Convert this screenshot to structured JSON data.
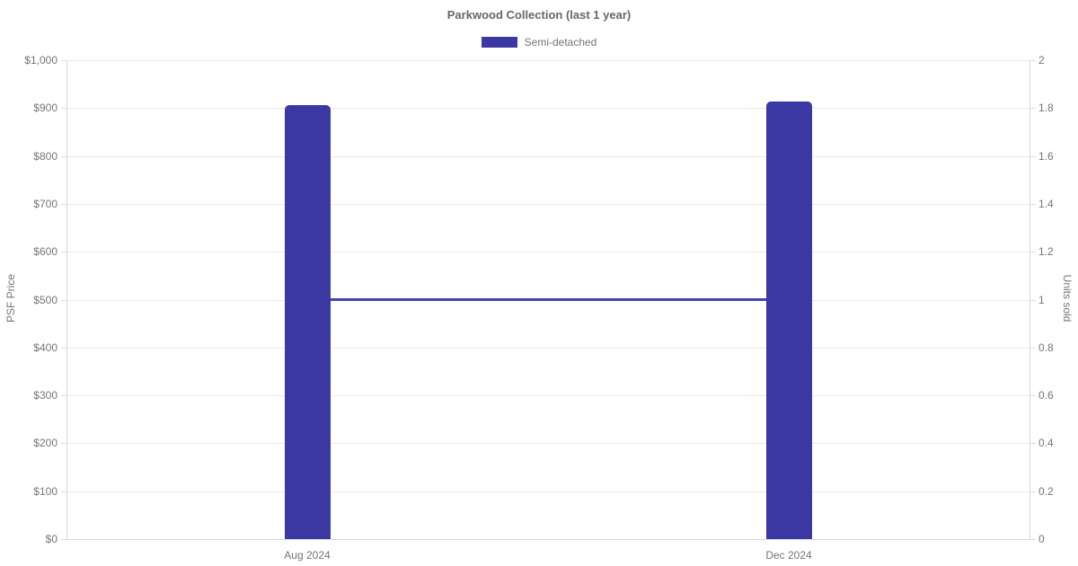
{
  "chart": {
    "title": "Parkwood Collection (last 1 year)",
    "legend": [
      {
        "label": "Semi-detached",
        "color": "#3c38a3"
      }
    ],
    "left_axis": {
      "title": "PSF Price",
      "ticks": [
        "$0",
        "$100",
        "$200",
        "$300",
        "$400",
        "$500",
        "$600",
        "$700",
        "$800",
        "$900",
        "$1,000"
      ]
    },
    "right_axis": {
      "title": "Units sold",
      "ticks": [
        "0",
        "0.2",
        "0.4",
        "0.6",
        "0.8",
        "1",
        "1.2",
        "1.4",
        "1.6",
        "1.8",
        "2"
      ]
    },
    "x_axis": {
      "categories": [
        "Aug 2024",
        "Dec 2024"
      ]
    }
  },
  "chart_data": {
    "type": "bar",
    "title": "Parkwood Collection (last 1 year)",
    "categories": [
      "Aug 2024",
      "Dec 2024"
    ],
    "series": [
      {
        "name": "Semi-detached",
        "type": "bar",
        "axis": "left",
        "values": [
          906,
          914
        ],
        "color": "#3c38a3"
      },
      {
        "name": "Units sold",
        "type": "line",
        "axis": "right",
        "values": [
          1,
          1
        ],
        "color": "#4743ae"
      }
    ],
    "left_axis": {
      "label": "PSF Price",
      "range": [
        0,
        1000
      ],
      "tick_step": 100,
      "tick_prefix": "$"
    },
    "right_axis": {
      "label": "Units sold",
      "range": [
        0,
        2
      ],
      "tick_step": 0.2
    },
    "legend": {
      "entries": [
        "Semi-detached"
      ],
      "position": "top"
    },
    "grid": true,
    "background": "#ffffff"
  }
}
